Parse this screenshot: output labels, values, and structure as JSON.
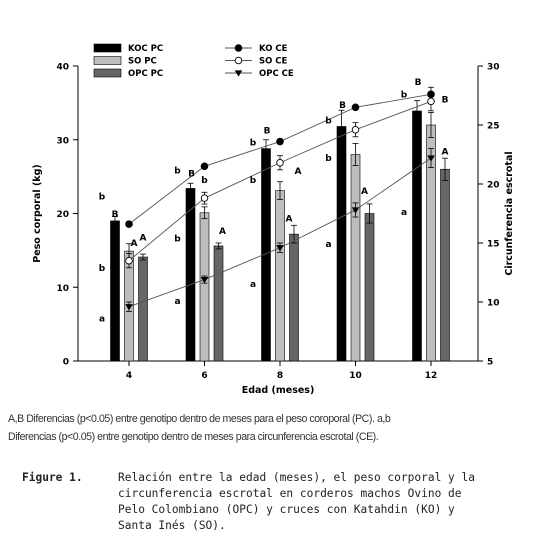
{
  "chart_data": {
    "type": "bar",
    "xlabel": "Edad (meses)",
    "ylabel": "Peso corporal (kg)",
    "y2label": "Circunferencia escrotal",
    "categories": [
      "4",
      "6",
      "8",
      "10",
      "12"
    ],
    "ylim": [
      0,
      40
    ],
    "yticks": [
      "0",
      "10",
      "20",
      "30",
      "40"
    ],
    "y2lim": [
      5,
      30
    ],
    "y2ticks": [
      "5",
      "10",
      "15",
      "20",
      "25",
      "30"
    ],
    "bar_series": [
      {
        "name": "KOC PC",
        "color": "#000000",
        "values": [
          19,
          23.4,
          28.8,
          31.8,
          33.9
        ],
        "err": [
          0.6,
          0.7,
          1.2,
          2.2,
          1.4
        ]
      },
      {
        "name": "SO  PC",
        "color": "#bdbdbd",
        "values": [
          14.9,
          20.1,
          23.1,
          28,
          32
        ],
        "err": [
          1.0,
          0.8,
          1.2,
          1.5,
          1.7
        ]
      },
      {
        "name": "OPC PC",
        "color": "#666666",
        "values": [
          14.1,
          15.6,
          17.2,
          20,
          26
        ],
        "err": [
          0.4,
          0.4,
          1.2,
          1.3,
          1.5
        ]
      }
    ],
    "line_series": [
      {
        "name": "KO  CE",
        "marker": "filled-circle",
        "values": [
          16.6,
          21.5,
          23.6,
          26.5,
          27.6
        ],
        "err": [
          0,
          0,
          0,
          0,
          0.6
        ]
      },
      {
        "name": "SO  CE",
        "marker": "open-circle",
        "values": [
          13.5,
          18.8,
          21.8,
          24.6,
          27
        ],
        "err": [
          0.6,
          0.5,
          0.6,
          0.6,
          0.8
        ]
      },
      {
        "name": "OPC CE",
        "marker": "down-triangle",
        "values": [
          9.6,
          11.9,
          14.6,
          17.8,
          22.2
        ],
        "err": [
          0.4,
          0.3,
          0.4,
          0.6,
          0.8
        ]
      }
    ],
    "annotations": [
      {
        "text": "b",
        "cat": 0,
        "y": 22.4
      },
      {
        "text": "B",
        "cat": 0,
        "y": 20
      },
      {
        "text": "b",
        "cat": 0,
        "y": 12.7
      },
      {
        "text": "a",
        "cat": 0,
        "y": 5.8
      },
      {
        "text": "A",
        "cat": 0,
        "y": 16.8
      },
      {
        "text": "A",
        "cat": 0,
        "y": 16.1
      },
      {
        "text": "b",
        "cat": 1,
        "y": 25.9
      },
      {
        "text": "b",
        "cat": 1,
        "y": 24.6
      },
      {
        "text": "B",
        "cat": 1,
        "y": 25.5
      },
      {
        "text": "b",
        "cat": 1,
        "y": 16.7
      },
      {
        "text": "A",
        "cat": 1,
        "y": 17.7
      },
      {
        "text": "a",
        "cat": 1,
        "y": 8.2
      },
      {
        "text": "B",
        "cat": 2,
        "y": 31.3
      },
      {
        "text": "b",
        "cat": 2,
        "y": 29.7
      },
      {
        "text": "b",
        "cat": 2,
        "y": 24.6
      },
      {
        "text": "A",
        "cat": 2,
        "y": 25.8
      },
      {
        "text": "A",
        "cat": 2,
        "y": 19.4
      },
      {
        "text": "a",
        "cat": 2,
        "y": 10.5
      },
      {
        "text": "b",
        "cat": 3,
        "y": 32.7
      },
      {
        "text": "B",
        "cat": 3,
        "y": 34.8
      },
      {
        "text": "b",
        "cat": 3,
        "y": 27.6
      },
      {
        "text": "A",
        "cat": 3,
        "y": 23.1
      },
      {
        "text": "a",
        "cat": 3,
        "y": 15.9
      },
      {
        "text": "b",
        "cat": 4,
        "y": 36.2
      },
      {
        "text": "B",
        "cat": 4,
        "y": 37.9
      },
      {
        "text": "B",
        "cat": 4,
        "y": 35.5
      },
      {
        "text": "A",
        "cat": 4,
        "y": 28.5
      },
      {
        "text": "a",
        "cat": 4,
        "y": 20.3
      }
    ]
  },
  "footnote": [
    "A,B Diferencias (p<0.05) entre genotipo dentro de meses para el peso coroporal (PC). a,b",
    "Diferencias (p<0.05) entre genotipo dentro de meses para circunferencia escrotal (CE)."
  ],
  "caption": {
    "label": "Figure 1.",
    "lines": [
      "Relación entre la edad  (meses), el peso corporal y la",
      "circunferencia escrotal  en corderos machos Ovino de",
      "Pelo Colombiano (OPC) y cruces con Katahdin (KO) y",
      "Santa Inés  (SO)."
    ]
  }
}
